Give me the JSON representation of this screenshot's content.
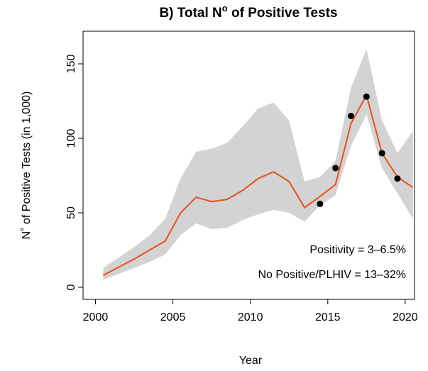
{
  "chart_data": {
    "type": "line",
    "title": [
      "B) Total N",
      "o",
      " of Positive Tests"
    ],
    "xlabel": "Year",
    "ylabel": "N˚ of Positive Tests (in 1,000)",
    "x": [
      2000.5,
      2001.5,
      2002.5,
      2003.5,
      2004.5,
      2005.5,
      2006.5,
      2007.5,
      2008.5,
      2009.5,
      2010.5,
      2011.5,
      2012.5,
      2013.5,
      2014.5,
      2015.5,
      2016.5,
      2017.5,
      2018.5,
      2019.5,
      2020.5
    ],
    "series": [
      {
        "color": "#e8501e",
        "values": [
          8,
          13.5,
          19,
          25,
          31,
          50,
          60.5,
          57.5,
          59,
          65,
          73,
          77.5,
          71,
          53.5,
          61,
          69,
          110,
          129,
          90,
          74,
          67
        ]
      }
    ],
    "band": {
      "color": "#d3d3d3",
      "upper": [
        13,
        20,
        27,
        35,
        46,
        73,
        91,
        93,
        97,
        108,
        120,
        124,
        112,
        71,
        74,
        85,
        134,
        160,
        112,
        90,
        105
      ],
      "lower": [
        5,
        9,
        13,
        17,
        22,
        35,
        43,
        39,
        40,
        45,
        49,
        52,
        50,
        44,
        55,
        62,
        95,
        116,
        80,
        63,
        46
      ]
    },
    "points": {
      "color": "#000000",
      "x": [
        2014.5,
        2015.5,
        2016.5,
        2017.5,
        2018.5,
        2019.5
      ],
      "values": [
        56,
        80,
        115,
        128,
        90,
        73
      ]
    },
    "annotations": [
      "Positivity = 3–6.5%",
      "No Positive/PLHIV = 13–32%"
    ],
    "xlim": [
      1999.2,
      2020.6
    ],
    "ylim": [
      -8.1,
      171.9
    ],
    "xticks": [
      2000,
      2005,
      2010,
      2015,
      2020
    ],
    "yticks": [
      0,
      50,
      100,
      150
    ]
  }
}
